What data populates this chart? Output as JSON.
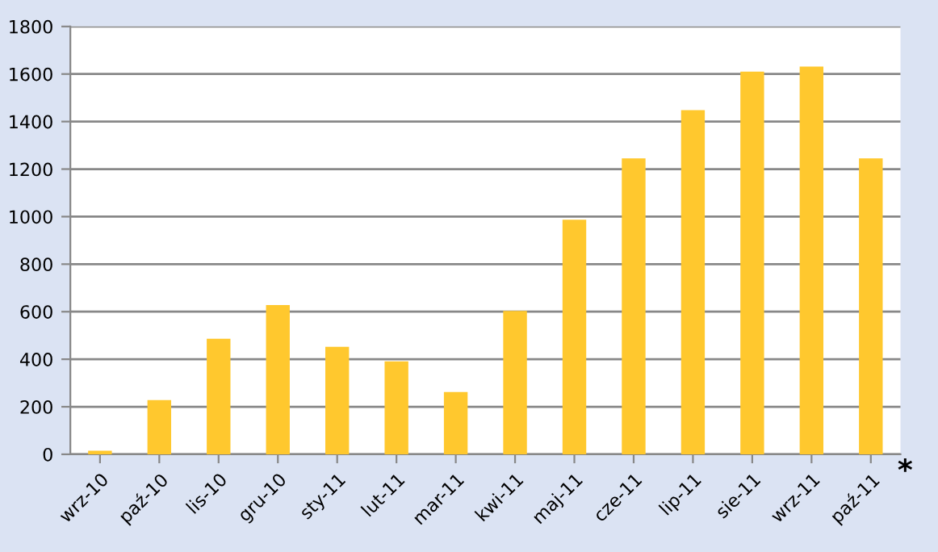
{
  "chart_data": {
    "type": "bar",
    "categories": [
      "wrz-10",
      "paź-10",
      "lis-10",
      "gru-10",
      "sty-11",
      "lut-11",
      "mar-11",
      "kwi-11",
      "maj-11",
      "cze-11",
      "lip-11",
      "sie-11",
      "wrz-11",
      "paź-11"
    ],
    "values": [
      15,
      228,
      486,
      628,
      452,
      391,
      262,
      603,
      987,
      1245,
      1448,
      1610,
      1631,
      1245
    ],
    "color": "#ffc82e",
    "ylim": [
      0,
      1800
    ],
    "yticks": [
      0,
      200,
      400,
      600,
      800,
      1000,
      1200,
      1400,
      1600,
      1800
    ],
    "grid": "y",
    "legend": false,
    "annotations": [
      "*"
    ]
  }
}
